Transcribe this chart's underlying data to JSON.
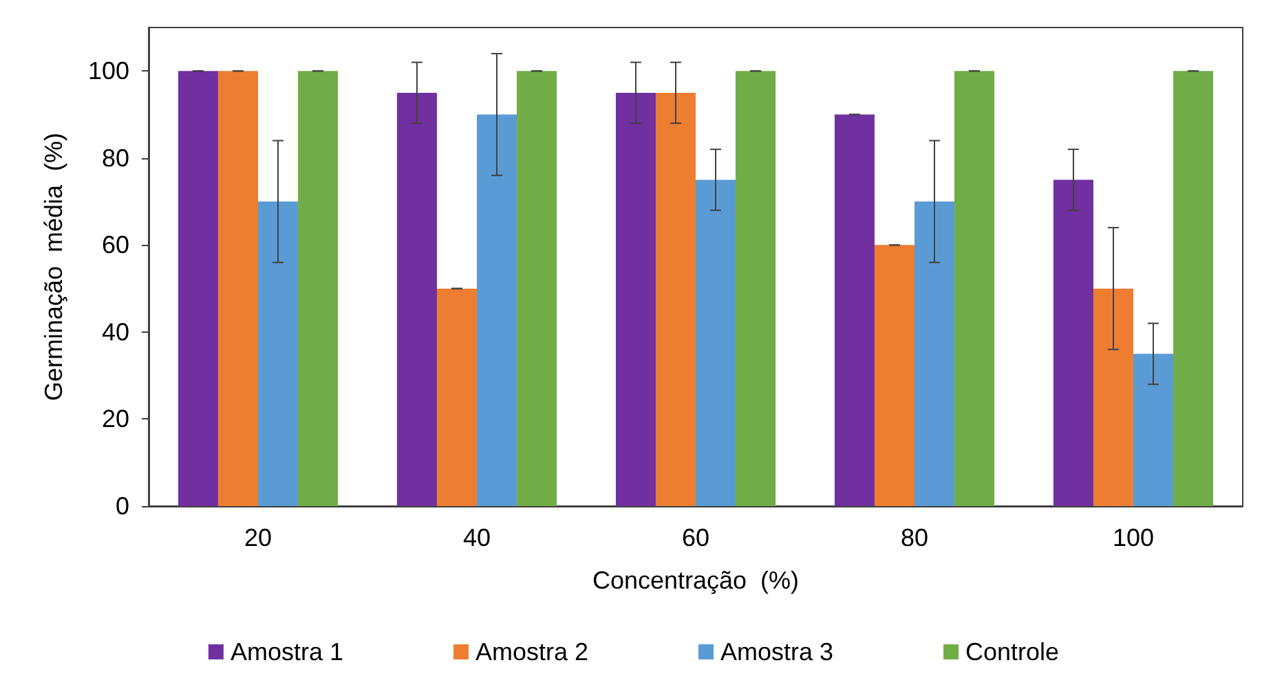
{
  "chart_data": {
    "type": "bar",
    "xlabel": "Concentração  (%)",
    "ylabel": "Germinação  média  (%)",
    "categories": [
      "20",
      "40",
      "60",
      "80",
      "100"
    ],
    "series": [
      {
        "name": "Amostra 1",
        "color": "#7030a0",
        "values": [
          100,
          95,
          95,
          90,
          75
        ],
        "errors": [
          0,
          7,
          7,
          0,
          7
        ]
      },
      {
        "name": "Amostra 2",
        "color": "#ed7d31",
        "values": [
          100,
          50,
          95,
          60,
          50
        ],
        "errors": [
          0,
          0,
          7,
          0,
          14
        ]
      },
      {
        "name": "Amostra 3",
        "color": "#5b9bd5",
        "values": [
          70,
          90,
          75,
          70,
          35
        ],
        "errors": [
          14,
          14,
          7,
          14,
          7
        ]
      },
      {
        "name": "Controle",
        "color": "#70ad47",
        "values": [
          100,
          100,
          100,
          100,
          100
        ],
        "errors": [
          0,
          0,
          0,
          0,
          0
        ]
      }
    ],
    "ylim": [
      0,
      110
    ],
    "yticks": [
      0,
      20,
      40,
      60,
      80,
      100
    ],
    "grid": false,
    "legend": "bottom"
  }
}
